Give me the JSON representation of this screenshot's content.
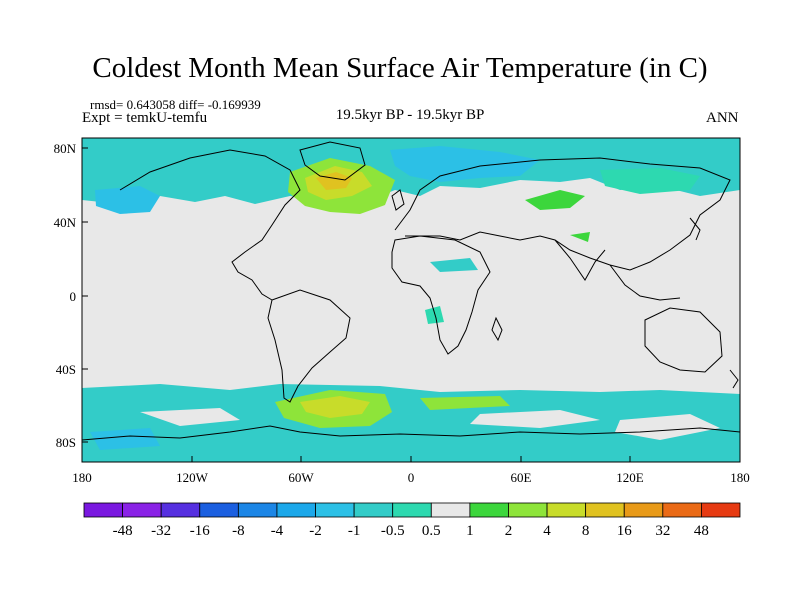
{
  "title": "Coldest Month Mean Surface Air Temperature (in C)",
  "stats": "rmsd= 0.643058 diff= -0.169939",
  "expt": "Expt = temkU-temfu",
  "subtitle": "19.5kyr BP - 19.5kyr BP",
  "season": "ANN",
  "lat_labels": [
    "80N",
    "40N",
    "0",
    "40S",
    "80S"
  ],
  "lon_labels": [
    "180",
    "120W",
    "60W",
    "0",
    "60E",
    "120E",
    "180"
  ],
  "colorbar": {
    "labels": [
      "-48",
      "-32",
      "-16",
      "-8",
      "-4",
      "-2",
      "-1",
      "-0.5",
      "0.5",
      "1",
      "2",
      "4",
      "8",
      "16",
      "32",
      "48"
    ],
    "colors": [
      "#8a22e6",
      "#5630e0",
      "#1b5fe0",
      "#1c86e6",
      "#1ca8ea",
      "#2cc0e6",
      "#33ccc8",
      "#2dd9b0",
      "#e8e8e8",
      "#3cd63c",
      "#8ee43a",
      "#c8dc2a",
      "#e0c220",
      "#e89a18",
      "#ea6a16",
      "#e63a12"
    ]
  },
  "colors": {
    "land_neutral": "#e8e8e8",
    "coast": "#000000"
  }
}
